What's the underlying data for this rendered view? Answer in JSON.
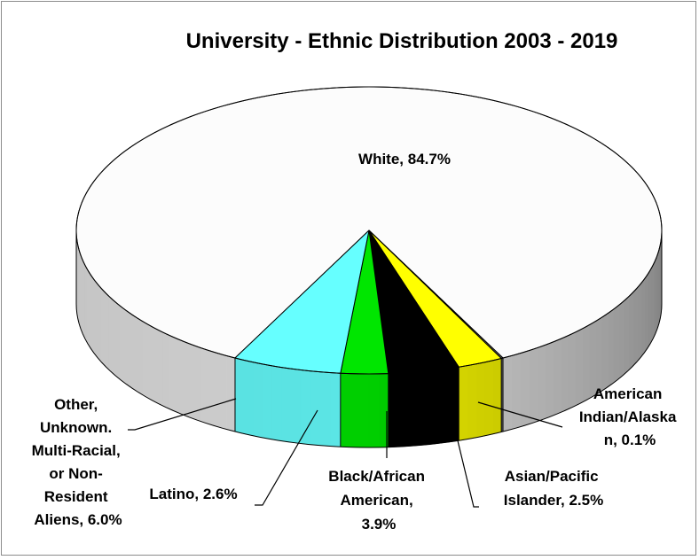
{
  "chart_data": {
    "type": "pie",
    "title": "University - Ethnic Distribution 2003 - 2019",
    "slices": [
      {
        "label": "White, 84.7%",
        "category": "White",
        "value": 84.7,
        "color": "#fcfcfc"
      },
      {
        "label": "American Indian/Alaskan, 0.1%",
        "category": "American Indian/Alaskan",
        "value": 0.1,
        "color": "#808080"
      },
      {
        "label": "Asian/Pacific Islander, 2.5%",
        "category": "Asian/Pacific Islander",
        "value": 2.5,
        "color": "#ffff00"
      },
      {
        "label": "Black/African American, 3.9%",
        "category": "Black/African American",
        "value": 3.9,
        "color": "#000000"
      },
      {
        "label": "Latino, 2.6%",
        "category": "Latino",
        "value": 2.6,
        "color": "#00e600"
      },
      {
        "label": "Other, Unknown. Multi-Racial, or Non-Resident Aliens, 6.0%",
        "category": "Other, Unknown. Multi-Racial, or Non-Resident Aliens",
        "value": 6.0,
        "color": "#66ffff"
      }
    ],
    "legend": "none",
    "style": "3d"
  }
}
